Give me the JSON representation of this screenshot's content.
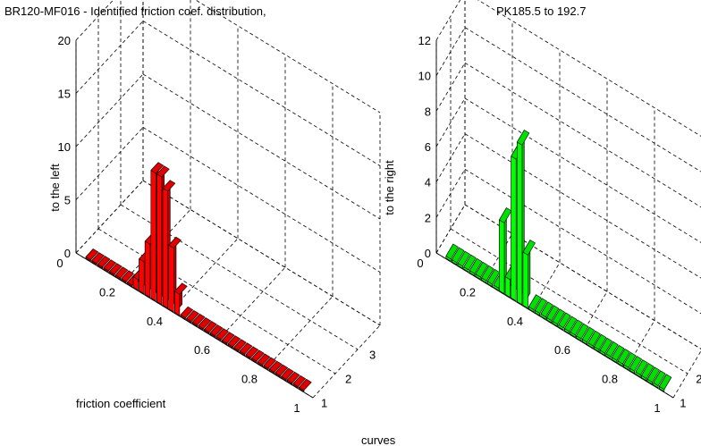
{
  "title_left": "BR120-MF016 - Identified friction coef. distribution,",
  "title_right": "PK185.5 to 192.7",
  "shared_xlabel": "curves",
  "chart_data": [
    {
      "type": "bar3",
      "name": "left",
      "zlabel": "to the left",
      "xlabel": "friction coefficient",
      "xticks": [
        "0",
        "0.2",
        "0.4",
        "0.6",
        "0.8",
        "1"
      ],
      "depth_ticks": [
        "1",
        "2",
        "3"
      ],
      "zticks": [
        0,
        5,
        10,
        15,
        20
      ],
      "zlim": [
        0,
        20
      ],
      "xlim": [
        0,
        1
      ],
      "bar_color": "#ff0000",
      "bins": [
        0.05,
        0.075,
        0.1,
        0.125,
        0.15,
        0.175,
        0.2,
        0.225,
        0.25,
        0.275,
        0.3,
        0.325,
        0.35,
        0.375,
        0.4,
        0.425,
        0.45,
        0.475,
        0.5,
        0.525,
        0.55,
        0.575,
        0.6,
        0.625,
        0.65,
        0.675,
        0.7,
        0.725,
        0.75,
        0.775,
        0.8,
        0.825,
        0.85,
        0.875,
        0.9,
        0.925,
        0.95
      ],
      "values": [
        0,
        0,
        0,
        0,
        0,
        0,
        0,
        0,
        1,
        3,
        5,
        12,
        12,
        11,
        6,
        2,
        0,
        0,
        0,
        0,
        0,
        0,
        0,
        0,
        0,
        0,
        0,
        0,
        0,
        0,
        0,
        0,
        0,
        0,
        0,
        0,
        0
      ]
    },
    {
      "type": "bar3",
      "name": "right",
      "zlabel": "to the right",
      "xticks": [
        "0",
        "0.2",
        "0.4",
        "0.6",
        "0.8",
        "1"
      ],
      "depth_ticks": [
        "1",
        "2"
      ],
      "zticks": [
        0,
        2,
        4,
        6,
        8,
        10,
        12
      ],
      "zlim": [
        0,
        12
      ],
      "xlim": [
        0,
        1
      ],
      "bar_color": "#00ff00",
      "bins": [
        0.05,
        0.075,
        0.1,
        0.125,
        0.15,
        0.175,
        0.2,
        0.225,
        0.25,
        0.275,
        0.3,
        0.325,
        0.35,
        0.375,
        0.4,
        0.425,
        0.45,
        0.475,
        0.5,
        0.525,
        0.55,
        0.575,
        0.6,
        0.625,
        0.65,
        0.675,
        0.7,
        0.725,
        0.75,
        0.775,
        0.8,
        0.825,
        0.85,
        0.875,
        0.9,
        0.925,
        0.95
      ],
      "values": [
        0,
        0,
        0,
        0,
        0,
        0,
        0,
        0,
        0,
        4,
        1,
        8,
        9,
        3,
        0,
        0,
        0,
        0,
        0,
        0,
        0,
        0,
        0,
        0,
        0,
        0,
        0,
        0,
        0,
        0,
        0,
        0,
        0,
        0,
        0,
        0,
        0
      ]
    }
  ]
}
